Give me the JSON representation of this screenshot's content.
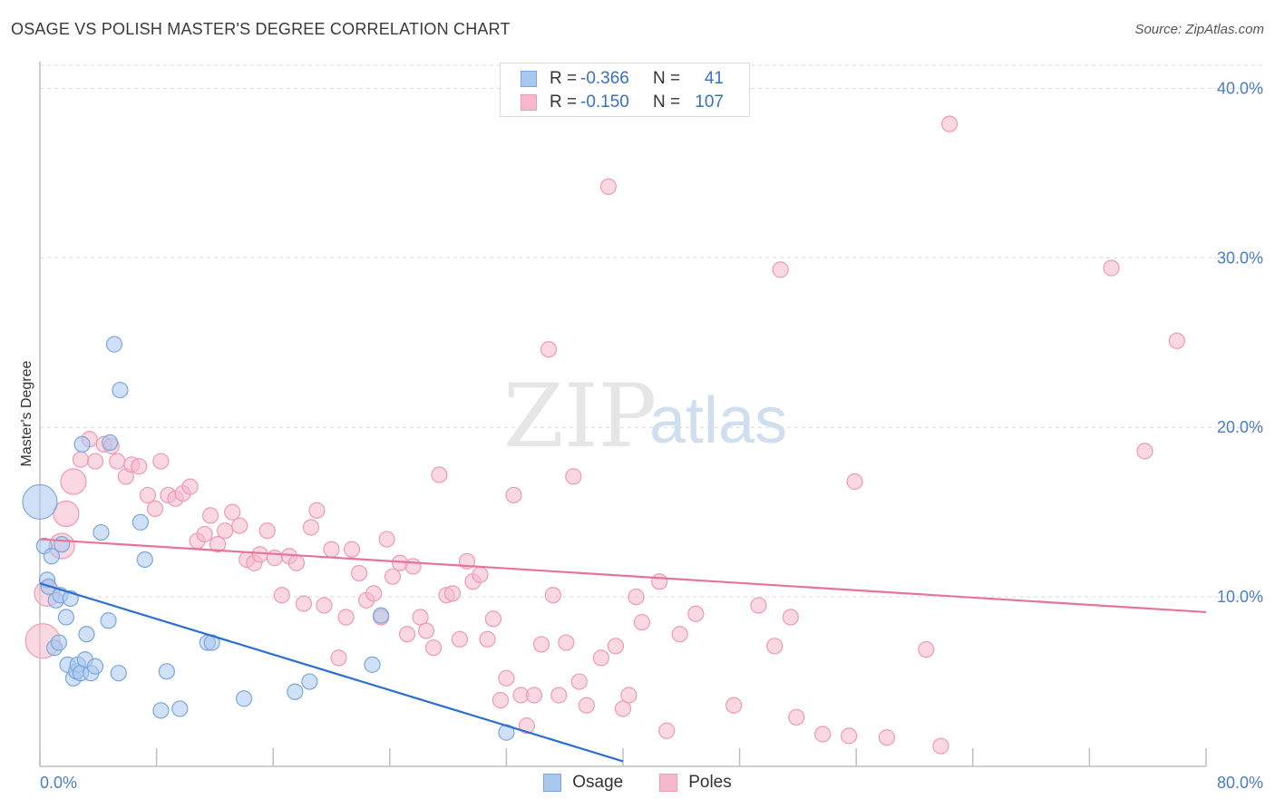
{
  "title": "OSAGE VS POLISH MASTER'S DEGREE CORRELATION CHART",
  "source": "Source: ZipAtlas.com",
  "watermark": {
    "zip": "ZIP",
    "atlas": "atlas"
  },
  "colors": {
    "osage_fill": "#a9c8f0",
    "osage_stroke": "#7aa6dd",
    "osage_line": "#2b6fd1",
    "poles_fill": "#f6b8cb",
    "poles_stroke": "#ee9ab4",
    "poles_line": "#e8729a",
    "grid": "#d9d9d9",
    "tick_label": "#4a7cc7"
  },
  "legend": {
    "rows": [
      {
        "r_label": "R =",
        "r_value": "-0.366",
        "n_label": "N =",
        "n_value": "41"
      },
      {
        "r_label": "R =",
        "r_value": "-0.150",
        "n_label": "N =",
        "n_value": "107"
      }
    ]
  },
  "bottom_legend": {
    "osage": "Osage",
    "poles": "Poles"
  },
  "chart_data": {
    "type": "scatter",
    "title": "OSAGE VS POLISH MASTER'S DEGREE CORRELATION CHART",
    "xlabel": "",
    "ylabel": "Master's Degree",
    "xlim": [
      0,
      80
    ],
    "ylim": [
      0,
      42
    ],
    "x_tick_labels": [
      "0.0%",
      "80.0%"
    ],
    "y_ticks": [
      10,
      20,
      30,
      40
    ],
    "y_tick_labels": [
      "10.0%",
      "20.0%",
      "30.0%",
      "40.0%"
    ],
    "grid": true,
    "legend_position": "top-center",
    "series": [
      {
        "name": "Osage",
        "r": -0.366,
        "n": 41,
        "trend": {
          "x0": 0,
          "y0": 10.8,
          "x1": 40,
          "y1": 0.3
        },
        "points": [
          [
            0.0,
            15.6,
            3
          ],
          [
            0.3,
            13.0,
            1
          ],
          [
            0.5,
            11.0,
            1
          ],
          [
            0.6,
            10.6,
            1
          ],
          [
            0.8,
            12.4,
            1
          ],
          [
            1.0,
            7.0,
            1
          ],
          [
            1.1,
            9.8,
            1
          ],
          [
            1.3,
            7.3,
            1
          ],
          [
            1.4,
            10.1,
            1
          ],
          [
            1.5,
            13.1,
            1
          ],
          [
            1.8,
            8.8,
            1
          ],
          [
            1.9,
            6.0,
            1
          ],
          [
            2.1,
            9.9,
            1
          ],
          [
            2.3,
            5.2,
            1
          ],
          [
            2.5,
            5.6,
            1
          ],
          [
            2.6,
            6.0,
            1
          ],
          [
            2.8,
            5.5,
            1
          ],
          [
            2.9,
            19.0,
            1
          ],
          [
            3.1,
            6.3,
            1
          ],
          [
            3.2,
            7.8,
            1
          ],
          [
            3.5,
            5.5,
            1
          ],
          [
            3.8,
            5.9,
            1
          ],
          [
            4.2,
            13.8,
            1
          ],
          [
            4.7,
            8.6,
            1
          ],
          [
            4.8,
            19.1,
            1
          ],
          [
            5.1,
            24.9,
            1
          ],
          [
            5.4,
            5.5,
            1
          ],
          [
            5.5,
            22.2,
            1
          ],
          [
            6.9,
            14.4,
            1
          ],
          [
            7.2,
            12.2,
            1
          ],
          [
            8.3,
            3.3,
            1
          ],
          [
            8.7,
            5.6,
            1
          ],
          [
            9.6,
            3.4,
            1
          ],
          [
            11.5,
            7.3,
            1
          ],
          [
            11.8,
            7.3,
            1
          ],
          [
            14.0,
            4.0,
            1
          ],
          [
            17.5,
            4.4,
            1
          ],
          [
            18.5,
            5.0,
            1
          ],
          [
            22.8,
            6.0,
            1
          ],
          [
            23.4,
            8.9,
            1
          ],
          [
            32.0,
            2.0,
            1
          ]
        ]
      },
      {
        "name": "Poles",
        "r": -0.15,
        "n": 107,
        "trend": {
          "x0": 0,
          "y0": 13.4,
          "x1": 80,
          "y1": 9.1
        },
        "points": [
          [
            0.2,
            7.4,
            3
          ],
          [
            0.5,
            10.2,
            2
          ],
          [
            1.5,
            13.0,
            2
          ],
          [
            1.8,
            14.9,
            2
          ],
          [
            2.3,
            16.8,
            2
          ],
          [
            2.8,
            18.1,
            1
          ],
          [
            3.4,
            19.3,
            1
          ],
          [
            3.8,
            18.0,
            1
          ],
          [
            4.4,
            19.0,
            1
          ],
          [
            4.9,
            18.9,
            1
          ],
          [
            5.3,
            18.0,
            1
          ],
          [
            5.9,
            17.1,
            1
          ],
          [
            6.3,
            17.8,
            1
          ],
          [
            6.8,
            17.7,
            1
          ],
          [
            7.4,
            16.0,
            1
          ],
          [
            7.9,
            15.2,
            1
          ],
          [
            8.3,
            18.0,
            1
          ],
          [
            8.8,
            16.0,
            1
          ],
          [
            9.3,
            15.8,
            1
          ],
          [
            9.8,
            16.1,
            1
          ],
          [
            10.3,
            16.5,
            1
          ],
          [
            10.8,
            13.3,
            1
          ],
          [
            11.3,
            13.7,
            1
          ],
          [
            11.7,
            14.8,
            1
          ],
          [
            12.2,
            13.1,
            1
          ],
          [
            12.7,
            13.9,
            1
          ],
          [
            13.2,
            15.0,
            1
          ],
          [
            13.7,
            14.2,
            1
          ],
          [
            14.2,
            12.2,
            1
          ],
          [
            14.7,
            12.0,
            1
          ],
          [
            15.1,
            12.5,
            1
          ],
          [
            15.6,
            13.9,
            1
          ],
          [
            16.1,
            12.3,
            1
          ],
          [
            16.6,
            10.1,
            1
          ],
          [
            17.1,
            12.4,
            1
          ],
          [
            17.6,
            12.0,
            1
          ],
          [
            18.1,
            9.6,
            1
          ],
          [
            18.6,
            14.1,
            1
          ],
          [
            19.0,
            15.1,
            1
          ],
          [
            19.5,
            9.5,
            1
          ],
          [
            20.0,
            12.8,
            1
          ],
          [
            20.5,
            6.4,
            1
          ],
          [
            21.0,
            8.8,
            1
          ],
          [
            21.4,
            12.8,
            1
          ],
          [
            21.9,
            11.4,
            1
          ],
          [
            22.4,
            9.8,
            1
          ],
          [
            22.9,
            10.2,
            1
          ],
          [
            23.4,
            8.8,
            1
          ],
          [
            23.8,
            13.4,
            1
          ],
          [
            24.2,
            11.2,
            1
          ],
          [
            24.7,
            12.0,
            1
          ],
          [
            25.2,
            7.8,
            1
          ],
          [
            25.6,
            11.8,
            1
          ],
          [
            26.1,
            8.8,
            1
          ],
          [
            26.5,
            8.0,
            1
          ],
          [
            27.0,
            7.0,
            1
          ],
          [
            27.4,
            17.2,
            1
          ],
          [
            27.9,
            10.1,
            1
          ],
          [
            28.3,
            10.2,
            1
          ],
          [
            28.8,
            7.5,
            1
          ],
          [
            29.3,
            12.1,
            1
          ],
          [
            29.7,
            10.9,
            1
          ],
          [
            30.2,
            11.3,
            1
          ],
          [
            30.7,
            7.5,
            1
          ],
          [
            31.1,
            8.7,
            1
          ],
          [
            31.6,
            3.9,
            1
          ],
          [
            32.0,
            5.2,
            1
          ],
          [
            32.5,
            16.0,
            1
          ],
          [
            33.0,
            4.2,
            1
          ],
          [
            33.4,
            2.4,
            1
          ],
          [
            33.9,
            4.2,
            1
          ],
          [
            34.4,
            7.2,
            1
          ],
          [
            34.9,
            24.6,
            1
          ],
          [
            35.2,
            10.1,
            1
          ],
          [
            35.6,
            4.2,
            1
          ],
          [
            36.1,
            7.3,
            1
          ],
          [
            36.6,
            17.1,
            1
          ],
          [
            37.0,
            5.0,
            1
          ],
          [
            37.5,
            3.6,
            1
          ],
          [
            38.5,
            6.4,
            1
          ],
          [
            39.0,
            34.2,
            1
          ],
          [
            39.5,
            7.1,
            1
          ],
          [
            40.0,
            3.4,
            1
          ],
          [
            40.4,
            4.2,
            1
          ],
          [
            40.9,
            10.0,
            1
          ],
          [
            41.3,
            8.5,
            1
          ],
          [
            42.5,
            10.9,
            1
          ],
          [
            43.0,
            2.1,
            1
          ],
          [
            43.9,
            7.8,
            1
          ],
          [
            45.0,
            9.0,
            1
          ],
          [
            47.6,
            3.6,
            1
          ],
          [
            49.3,
            9.5,
            1
          ],
          [
            50.4,
            7.1,
            1
          ],
          [
            50.8,
            29.3,
            1
          ],
          [
            51.5,
            8.8,
            1
          ],
          [
            51.9,
            2.9,
            1
          ],
          [
            53.7,
            1.9,
            1
          ],
          [
            55.5,
            1.8,
            1
          ],
          [
            55.9,
            16.8,
            1
          ],
          [
            58.1,
            1.7,
            1
          ],
          [
            60.8,
            6.9,
            1
          ],
          [
            61.8,
            1.2,
            1
          ],
          [
            62.4,
            37.9,
            1
          ],
          [
            73.5,
            29.4,
            1
          ],
          [
            75.8,
            18.6,
            1
          ],
          [
            78.0,
            25.1,
            1
          ]
        ]
      }
    ]
  }
}
